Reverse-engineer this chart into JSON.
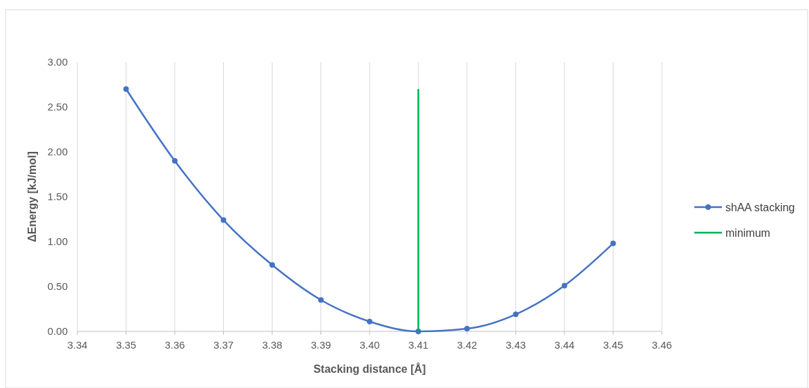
{
  "chart_data": {
    "type": "line",
    "xlabel": "Stacking distance [Å]",
    "ylabel": "ΔEnergy [kJ/mol]",
    "xlim": [
      3.34,
      3.46
    ],
    "xticks": [
      3.34,
      3.35,
      3.36,
      3.37,
      3.38,
      3.39,
      {
        "value": 3.4,
        "label": "3.40"
      },
      3.41,
      3.42,
      3.43,
      3.44,
      3.45,
      3.46
    ],
    "ylim": [
      0,
      3
    ],
    "yticks": [
      {
        "value": 0,
        "label": "0.00"
      },
      {
        "value": 0.5,
        "label": "0.50"
      },
      {
        "value": 1,
        "label": "1.00"
      },
      {
        "value": 1.5,
        "label": "1.50"
      },
      {
        "value": 2,
        "label": "2.00"
      },
      {
        "value": 2.5,
        "label": "2.50"
      },
      {
        "value": 3,
        "label": "3.00"
      }
    ],
    "grid": "x",
    "legend": "right",
    "series": [
      {
        "name": "shAA stacking",
        "color": "#4472c4",
        "marker": "circle",
        "x": [
          3.35,
          3.36,
          3.37,
          3.38,
          3.39,
          3.4,
          3.41,
          3.42,
          3.43,
          3.44,
          3.45
        ],
        "values": [
          2.7,
          1.9,
          1.24,
          0.74,
          0.35,
          0.11,
          0.0,
          0.03,
          0.19,
          0.51,
          0.98
        ]
      },
      {
        "name": "minimum",
        "color": "#00b050",
        "marker": "none",
        "x": [
          3.41,
          3.41
        ],
        "values": [
          0,
          2.7
        ]
      }
    ]
  }
}
